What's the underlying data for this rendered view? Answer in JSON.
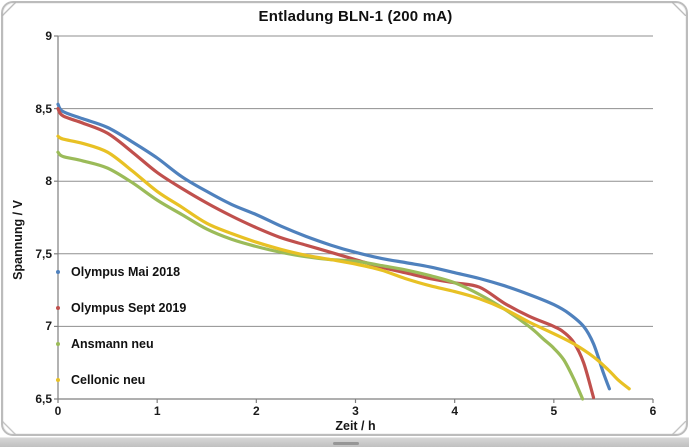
{
  "chart_data": {
    "type": "line",
    "title": "Entladung BLN-1 (200 mA)",
    "xlabel": "Zeit / h",
    "ylabel": "Spannung / V",
    "xlim": [
      0,
      6
    ],
    "ylim": [
      6.5,
      9
    ],
    "xticks": [
      0,
      1,
      2,
      3,
      4,
      5,
      6
    ],
    "xtick_labels": [
      "0",
      "1",
      "2",
      "3",
      "4",
      "5",
      "6"
    ],
    "yticks": [
      9,
      8.5,
      8,
      7.5,
      7,
      6.5
    ],
    "ytick_labels": [
      "9",
      "8,5",
      "8",
      "7,5",
      "7",
      "6,5"
    ],
    "grid": "horizontal",
    "grid_color": "#8F8F8F",
    "axis_color": "#7F7F7F",
    "text_color": "#1A1A1A",
    "legend_position": "inside-left",
    "series": [
      {
        "name": "Olympus Mai 2018",
        "color": "#4F81BD",
        "points": [
          [
            0,
            8.53
          ],
          [
            0.05,
            8.48
          ],
          [
            0.25,
            8.43
          ],
          [
            0.5,
            8.37
          ],
          [
            0.75,
            8.27
          ],
          [
            1,
            8.16
          ],
          [
            1.25,
            8.03
          ],
          [
            1.5,
            7.93
          ],
          [
            1.75,
            7.84
          ],
          [
            2,
            7.77
          ],
          [
            2.25,
            7.69
          ],
          [
            2.5,
            7.62
          ],
          [
            2.75,
            7.56
          ],
          [
            3,
            7.51
          ],
          [
            3.25,
            7.47
          ],
          [
            3.5,
            7.44
          ],
          [
            3.75,
            7.41
          ],
          [
            4,
            7.37
          ],
          [
            4.25,
            7.33
          ],
          [
            4.5,
            7.28
          ],
          [
            4.75,
            7.22
          ],
          [
            5,
            7.15
          ],
          [
            5.15,
            7.09
          ],
          [
            5.3,
            7.0
          ],
          [
            5.4,
            6.88
          ],
          [
            5.5,
            6.68
          ],
          [
            5.56,
            6.57
          ]
        ]
      },
      {
        "name": "Olympus Sept 2019",
        "color": "#C0504D",
        "points": [
          [
            0,
            8.5
          ],
          [
            0.05,
            8.45
          ],
          [
            0.25,
            8.4
          ],
          [
            0.5,
            8.33
          ],
          [
            0.75,
            8.2
          ],
          [
            1,
            8.06
          ],
          [
            1.25,
            7.95
          ],
          [
            1.5,
            7.85
          ],
          [
            1.75,
            7.76
          ],
          [
            2,
            7.68
          ],
          [
            2.25,
            7.61
          ],
          [
            2.5,
            7.56
          ],
          [
            2.75,
            7.51
          ],
          [
            3,
            7.46
          ],
          [
            3.25,
            7.41
          ],
          [
            3.5,
            7.37
          ],
          [
            3.75,
            7.33
          ],
          [
            4,
            7.3
          ],
          [
            4.25,
            7.27
          ],
          [
            4.5,
            7.16
          ],
          [
            4.75,
            7.07
          ],
          [
            5,
            7.0
          ],
          [
            5.1,
            6.96
          ],
          [
            5.2,
            6.89
          ],
          [
            5.3,
            6.75
          ],
          [
            5.4,
            6.51
          ]
        ]
      },
      {
        "name": "Ansmann neu",
        "color": "#9BBB59",
        "points": [
          [
            0,
            8.2
          ],
          [
            0.05,
            8.17
          ],
          [
            0.25,
            8.14
          ],
          [
            0.5,
            8.09
          ],
          [
            0.75,
            7.99
          ],
          [
            1,
            7.87
          ],
          [
            1.25,
            7.77
          ],
          [
            1.5,
            7.67
          ],
          [
            1.75,
            7.6
          ],
          [
            2,
            7.55
          ],
          [
            2.25,
            7.51
          ],
          [
            2.5,
            7.48
          ],
          [
            2.75,
            7.46
          ],
          [
            3,
            7.45
          ],
          [
            3.25,
            7.42
          ],
          [
            3.5,
            7.39
          ],
          [
            3.75,
            7.35
          ],
          [
            4,
            7.3
          ],
          [
            4.25,
            7.22
          ],
          [
            4.5,
            7.12
          ],
          [
            4.75,
            7.0
          ],
          [
            4.9,
            6.91
          ],
          [
            5,
            6.85
          ],
          [
            5.1,
            6.77
          ],
          [
            5.2,
            6.64
          ],
          [
            5.29,
            6.5
          ]
        ]
      },
      {
        "name": "Cellonic neu",
        "color": "#E8C124",
        "points": [
          [
            0,
            8.31
          ],
          [
            0.05,
            8.29
          ],
          [
            0.25,
            8.26
          ],
          [
            0.5,
            8.2
          ],
          [
            0.75,
            8.07
          ],
          [
            1,
            7.93
          ],
          [
            1.25,
            7.82
          ],
          [
            1.5,
            7.71
          ],
          [
            1.75,
            7.64
          ],
          [
            2,
            7.58
          ],
          [
            2.25,
            7.53
          ],
          [
            2.5,
            7.49
          ],
          [
            2.75,
            7.46
          ],
          [
            3,
            7.43
          ],
          [
            3.25,
            7.39
          ],
          [
            3.5,
            7.33
          ],
          [
            3.75,
            7.28
          ],
          [
            4,
            7.24
          ],
          [
            4.25,
            7.19
          ],
          [
            4.5,
            7.12
          ],
          [
            4.75,
            7.03
          ],
          [
            5,
            6.95
          ],
          [
            5.2,
            6.88
          ],
          [
            5.4,
            6.79
          ],
          [
            5.55,
            6.7
          ],
          [
            5.65,
            6.63
          ],
          [
            5.76,
            6.57
          ]
        ]
      }
    ]
  }
}
